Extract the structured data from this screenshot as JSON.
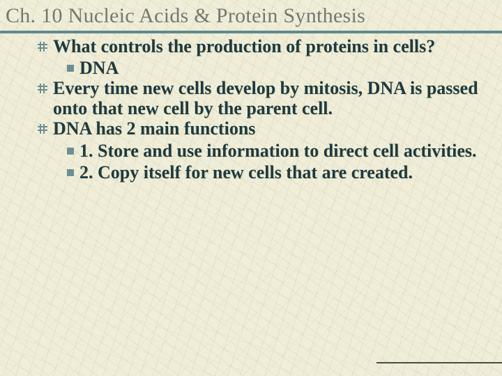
{
  "title": "Ch. 10 Nucleic Acids & Protein Synthesis",
  "colors": {
    "title_text": "#757772",
    "rule": "#5f8a8f",
    "body_text": "#1e3a3f",
    "bullet_icon": "#6c8f93",
    "background": "#f0eed8",
    "bottom_line": "#4a4a48"
  },
  "typography": {
    "title_fontsize": 30,
    "body_fontsize": 26,
    "body_fontweight": "bold",
    "font_family": "Georgia, Times New Roman, serif"
  },
  "bullets": [
    {
      "level": 1,
      "text": "What controls the production of proteins in cells?"
    },
    {
      "level": 2,
      "text": "DNA"
    },
    {
      "level": 1,
      "text": "Every time new cells develop by mitosis, DNA is passed onto that new cell by the parent cell."
    },
    {
      "level": 1,
      "text": "DNA has 2 main functions"
    },
    {
      "level": 2,
      "text": "1. Store and use information to direct cell activities."
    },
    {
      "level": 2,
      "text": "2. Copy itself for new cells that are created."
    }
  ]
}
